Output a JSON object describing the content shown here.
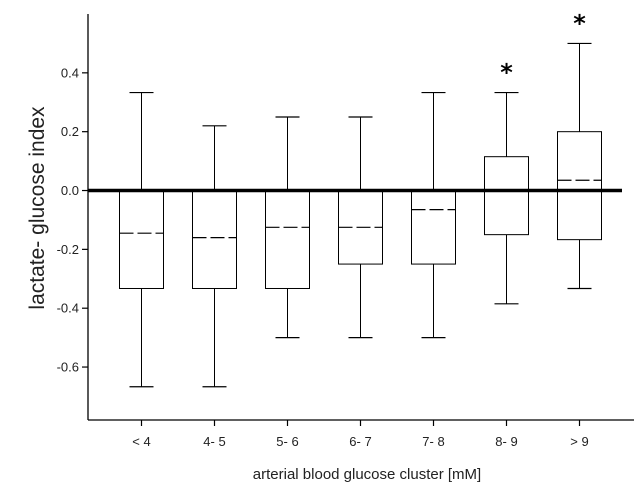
{
  "chart_data": {
    "type": "box",
    "xlabel": "arterial blood glucose cluster [mM]",
    "ylabel": "lactate- glucose index",
    "ylim": [
      -0.78,
      0.6
    ],
    "yticks": [
      -0.6,
      -0.4,
      -0.2,
      0.0,
      0.2,
      0.4
    ],
    "ytick_labels": [
      "-0.6",
      "-0.4",
      "-0.2",
      "0.0",
      "0.2",
      "0.4"
    ],
    "reference_line": 0.0,
    "categories": [
      "< 4",
      "4- 5",
      "5- 6",
      "6- 7",
      "7- 8",
      "8- 9",
      "> 9"
    ],
    "boxes": [
      {
        "min": -0.667,
        "q1": -0.333,
        "median": -0.145,
        "q3": 0.0,
        "max": 0.333,
        "annotation": ""
      },
      {
        "min": -0.667,
        "q1": -0.333,
        "median": -0.16,
        "q3": 0.0,
        "max": 0.22,
        "annotation": ""
      },
      {
        "min": -0.5,
        "q1": -0.333,
        "median": -0.125,
        "q3": 0.0,
        "max": 0.25,
        "annotation": ""
      },
      {
        "min": -0.5,
        "q1": -0.25,
        "median": -0.125,
        "q3": 0.0,
        "max": 0.25,
        "annotation": ""
      },
      {
        "min": -0.5,
        "q1": -0.25,
        "median": -0.065,
        "q3": 0.0,
        "max": 0.333,
        "annotation": ""
      },
      {
        "min": -0.385,
        "q1": -0.15,
        "median": 0.0,
        "q3": 0.115,
        "max": 0.333,
        "annotation": "*"
      },
      {
        "min": -0.333,
        "q1": -0.167,
        "median": 0.035,
        "q3": 0.2,
        "max": 0.5,
        "annotation": "*"
      }
    ],
    "grid": false,
    "legend": "none"
  }
}
